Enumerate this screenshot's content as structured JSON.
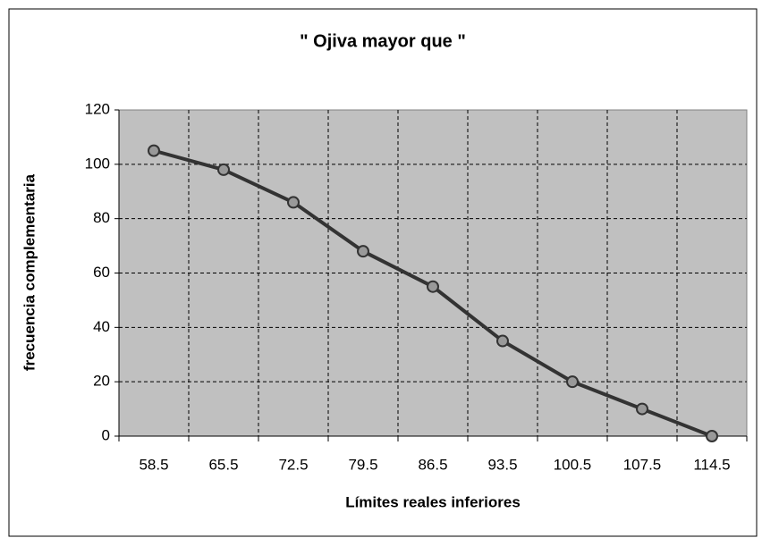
{
  "chart_data": {
    "type": "line",
    "title": "\" Ojiva mayor que \"",
    "x_label": "Límites reales inferiores",
    "y_label": "frecuencia complementaria",
    "categories": [
      "58.5",
      "65.5",
      "72.5",
      "79.5",
      "86.5",
      "93.5",
      "100.5",
      "107.5",
      "114.5"
    ],
    "series": [
      {
        "color": "#333333",
        "values": [
          105,
          98,
          86,
          68,
          55,
          35,
          20,
          10,
          0
        ]
      }
    ],
    "ylim": [
      0,
      120
    ],
    "yticks": [
      0,
      20,
      40,
      60,
      80,
      100,
      120
    ],
    "grid": true
  }
}
